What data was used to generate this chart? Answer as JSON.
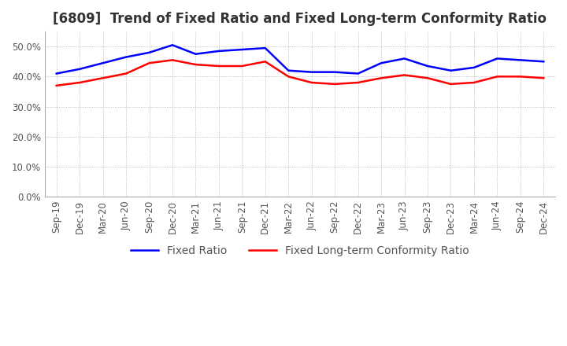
{
  "title": "[6809]  Trend of Fixed Ratio and Fixed Long-term Conformity Ratio",
  "x_labels": [
    "Sep-19",
    "Dec-19",
    "Mar-20",
    "Jun-20",
    "Sep-20",
    "Dec-20",
    "Mar-21",
    "Jun-21",
    "Sep-21",
    "Dec-21",
    "Mar-22",
    "Jun-22",
    "Sep-22",
    "Dec-22",
    "Mar-23",
    "Jun-23",
    "Sep-23",
    "Dec-23",
    "Mar-24",
    "Jun-24",
    "Sep-24",
    "Dec-24"
  ],
  "fixed_ratio": [
    41.0,
    42.5,
    44.5,
    46.5,
    48.0,
    50.5,
    47.5,
    48.5,
    49.0,
    49.5,
    42.0,
    41.5,
    41.5,
    41.0,
    44.5,
    46.0,
    43.5,
    42.0,
    43.0,
    46.0,
    45.5,
    45.0
  ],
  "fixed_lt_ratio": [
    37.0,
    38.0,
    39.5,
    41.0,
    44.5,
    45.5,
    44.0,
    43.5,
    43.5,
    45.0,
    40.0,
    38.0,
    37.5,
    38.0,
    39.5,
    40.5,
    39.5,
    37.5,
    38.0,
    40.0,
    40.0,
    39.5
  ],
  "fixed_ratio_color": "#0000FF",
  "fixed_lt_ratio_color": "#FF0000",
  "ylim": [
    0.0,
    55.0
  ],
  "yticks": [
    0.0,
    10.0,
    20.0,
    30.0,
    40.0,
    50.0
  ],
  "background_color": "#FFFFFF",
  "grid_color": "#AAAAAA",
  "title_fontsize": 12,
  "legend_fontsize": 10,
  "axis_fontsize": 8.5
}
